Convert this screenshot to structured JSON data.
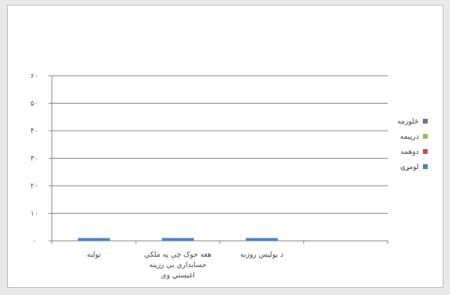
{
  "chart_data": {
    "type": "bar",
    "title": "",
    "xlabel": "",
    "ylabel": "",
    "ylim": [
      0,
      60
    ],
    "y_ticks": [
      "۰",
      "۱۰",
      "۲۰",
      "۳۰",
      "۴۰",
      "۵۰",
      "۶۰"
    ],
    "categories": [
      [
        "تولنه"
      ],
      [
        "هغه خوک چې په ملکي",
        "حسابداري بې رزینه",
        "اغیستي وي"
      ],
      [
        "د پولیس روزنه"
      ],
      [
        ""
      ]
    ],
    "series": [
      {
        "name": "لومړۍ",
        "color": "#4f81bd",
        "values": [
          1,
          1,
          1,
          0
        ]
      },
      {
        "name": "دوهمه",
        "color": "#c0504d",
        "values": [
          0,
          0,
          0,
          0
        ]
      },
      {
        "name": "درېیمه",
        "color": "#9bbb59",
        "values": [
          0,
          0,
          0,
          0
        ]
      },
      {
        "name": "څلورمه",
        "color": "#8064a2",
        "values": [
          0,
          0,
          0,
          0
        ]
      }
    ],
    "grid": true,
    "legend_position": "right"
  }
}
